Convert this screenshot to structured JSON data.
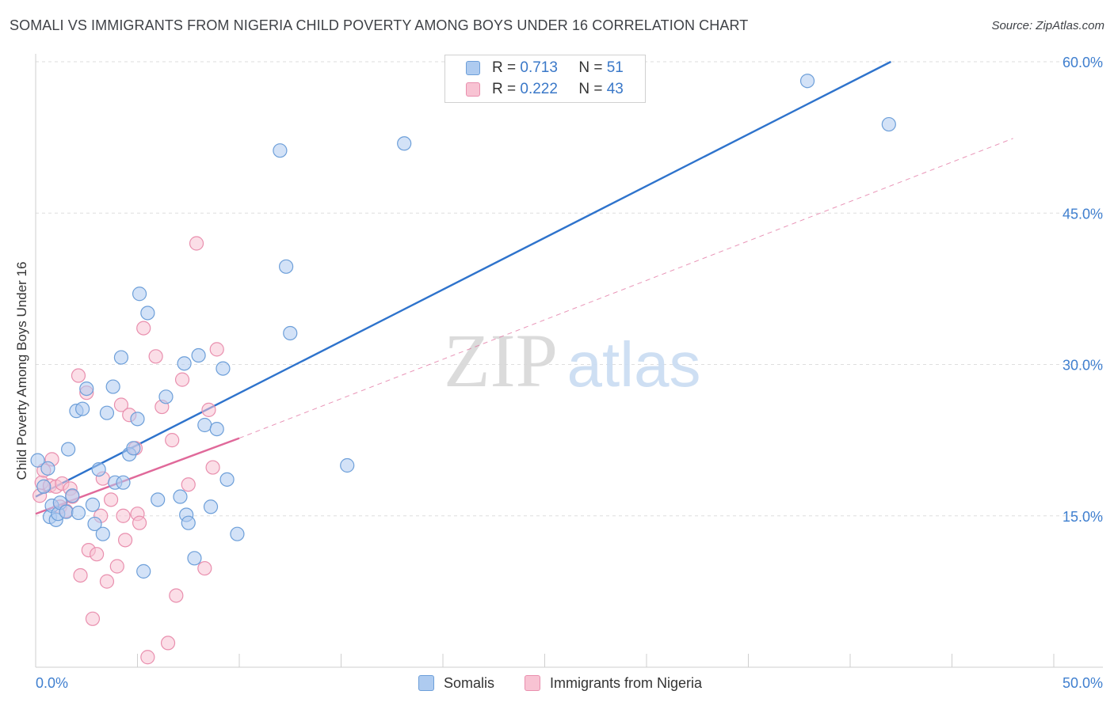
{
  "header": {
    "title": "SOMALI VS IMMIGRANTS FROM NIGERIA CHILD POVERTY AMONG BOYS UNDER 16 CORRELATION CHART",
    "source": "Source: ZipAtlas.com"
  },
  "watermark": {
    "zip": "ZIP",
    "atlas": "atlas"
  },
  "legend": {
    "r_label": "R =",
    "n_label": "N =",
    "rows": [
      {
        "name": "Somalis",
        "r": "0.713",
        "n": "51"
      },
      {
        "name": "Immigrants from Nigeria",
        "r": "0.222",
        "n": "43"
      }
    ]
  },
  "colors": {
    "somali_fill": "#aecbf0",
    "somali_stroke": "#6d9fd9",
    "somali_line": "#2e73cc",
    "nigeria_fill": "#f8c3d3",
    "nigeria_stroke": "#e98fae",
    "nigeria_line": "#e0699a",
    "axis_text": "#3f7fcf",
    "grid": "#dedede"
  },
  "chart_data": {
    "type": "scatter",
    "title": "SOMALI VS IMMIGRANTS FROM NIGERIA CHILD POVERTY AMONG BOYS UNDER 16 CORRELATION CHART",
    "xlabel": "",
    "ylabel": "Child Poverty Among Boys Under 16",
    "xlim": [
      0,
      50
    ],
    "ylim": [
      0,
      60
    ],
    "x_tick_labels": [
      "0.0%",
      "50.0%"
    ],
    "y_ticks": [
      15,
      30,
      45,
      60
    ],
    "y_tick_labels": [
      "15.0%",
      "30.0%",
      "45.0%",
      "60.0%"
    ],
    "grid": true,
    "series": [
      {
        "name": "Somalis",
        "r": 0.713,
        "n": 51,
        "trend": {
          "x": [
            0,
            42
          ],
          "y": [
            16.9,
            60.0
          ],
          "style": "solid"
        },
        "points": [
          [
            0.1,
            20.5
          ],
          [
            0.4,
            17.9
          ],
          [
            0.6,
            19.7
          ],
          [
            0.7,
            14.9
          ],
          [
            0.8,
            16.0
          ],
          [
            1.0,
            14.6
          ],
          [
            1.1,
            15.2
          ],
          [
            1.2,
            16.3
          ],
          [
            1.5,
            15.4
          ],
          [
            1.6,
            21.6
          ],
          [
            1.8,
            17.0
          ],
          [
            2.0,
            25.4
          ],
          [
            2.1,
            15.3
          ],
          [
            2.3,
            25.6
          ],
          [
            2.5,
            27.6
          ],
          [
            2.8,
            16.1
          ],
          [
            2.9,
            14.2
          ],
          [
            3.1,
            19.6
          ],
          [
            3.3,
            13.2
          ],
          [
            3.5,
            25.2
          ],
          [
            3.8,
            27.8
          ],
          [
            3.9,
            18.3
          ],
          [
            4.2,
            30.7
          ],
          [
            4.3,
            18.3
          ],
          [
            4.6,
            21.1
          ],
          [
            4.8,
            21.7
          ],
          [
            5.0,
            24.6
          ],
          [
            5.1,
            37.0
          ],
          [
            5.3,
            9.5
          ],
          [
            5.5,
            35.1
          ],
          [
            6.0,
            16.6
          ],
          [
            6.4,
            26.8
          ],
          [
            7.1,
            16.9
          ],
          [
            7.3,
            30.1
          ],
          [
            7.4,
            15.1
          ],
          [
            7.5,
            14.3
          ],
          [
            7.8,
            10.8
          ],
          [
            8.0,
            30.9
          ],
          [
            8.3,
            24.0
          ],
          [
            8.6,
            15.9
          ],
          [
            8.9,
            23.6
          ],
          [
            9.2,
            29.6
          ],
          [
            9.4,
            18.6
          ],
          [
            9.9,
            13.2
          ],
          [
            12.0,
            51.2
          ],
          [
            12.3,
            39.7
          ],
          [
            12.5,
            33.1
          ],
          [
            15.3,
            20.0
          ],
          [
            18.1,
            51.9
          ],
          [
            37.9,
            58.1
          ],
          [
            41.9,
            53.8
          ]
        ]
      },
      {
        "name": "Immigrants from Nigeria",
        "r": 0.222,
        "n": 43,
        "trend": {
          "x": [
            0,
            10
          ],
          "y": [
            15.2,
            22.7
          ],
          "style": "solid"
        },
        "trend_extension": {
          "x": [
            10,
            48
          ],
          "y": [
            22.7,
            52.4
          ],
          "style": "dashed"
        },
        "points": [
          [
            0.2,
            17.0
          ],
          [
            0.3,
            18.3
          ],
          [
            0.4,
            19.5
          ],
          [
            0.7,
            18.0
          ],
          [
            0.8,
            20.6
          ],
          [
            1.0,
            17.9
          ],
          [
            1.2,
            15.9
          ],
          [
            1.3,
            18.2
          ],
          [
            1.5,
            15.5
          ],
          [
            1.7,
            17.7
          ],
          [
            1.8,
            16.9
          ],
          [
            2.1,
            28.9
          ],
          [
            2.2,
            9.1
          ],
          [
            2.5,
            27.2
          ],
          [
            2.6,
            11.6
          ],
          [
            2.8,
            4.8
          ],
          [
            3.0,
            11.2
          ],
          [
            3.2,
            15.0
          ],
          [
            3.3,
            18.7
          ],
          [
            3.5,
            8.5
          ],
          [
            3.7,
            16.6
          ],
          [
            4.0,
            10.0
          ],
          [
            4.2,
            26.0
          ],
          [
            4.3,
            15.0
          ],
          [
            4.4,
            12.6
          ],
          [
            4.6,
            25.0
          ],
          [
            4.9,
            21.7
          ],
          [
            5.0,
            15.2
          ],
          [
            5.1,
            14.3
          ],
          [
            5.3,
            33.6
          ],
          [
            5.5,
            1.0
          ],
          [
            5.9,
            30.8
          ],
          [
            6.2,
            25.8
          ],
          [
            6.5,
            2.4
          ],
          [
            6.7,
            22.5
          ],
          [
            6.9,
            7.1
          ],
          [
            7.2,
            28.5
          ],
          [
            7.5,
            18.1
          ],
          [
            7.9,
            42.0
          ],
          [
            8.3,
            9.8
          ],
          [
            8.5,
            25.5
          ],
          [
            8.7,
            19.8
          ],
          [
            8.9,
            31.5
          ]
        ]
      }
    ]
  }
}
